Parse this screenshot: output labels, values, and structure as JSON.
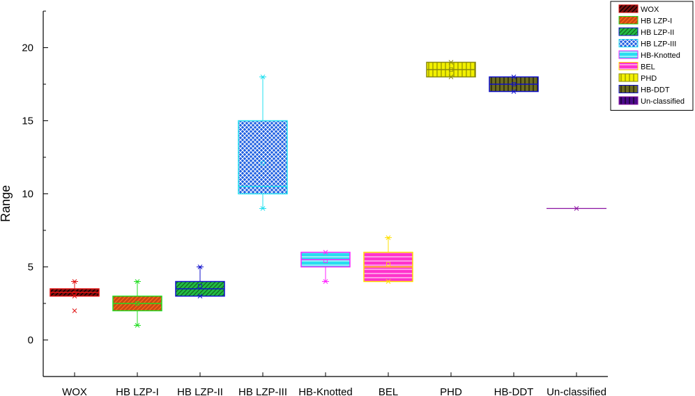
{
  "chart_data": {
    "type": "box",
    "title": "",
    "xlabel": "",
    "ylabel": "Range",
    "ylim": [
      -2.5,
      22.5
    ],
    "yticks": [
      "0",
      "5",
      "10",
      "15",
      "20"
    ],
    "categories": [
      "WOX",
      "HB LZP-I",
      "HB LZP-II",
      "HB LZP-III",
      "HB-Knotted",
      "BEL",
      "PHD",
      "HB-DDT",
      "Un-classified"
    ],
    "boxes": [
      {
        "name": "WOX",
        "min": 3,
        "q1": 3,
        "median": 3.25,
        "q3": 3.5,
        "max": 4,
        "mean": 3.2,
        "outliers": [
          2
        ],
        "color": "#e01010",
        "fill": "#7a1010",
        "pattern": "diag"
      },
      {
        "name": "HB LZP-I",
        "min": 1,
        "q1": 2,
        "median": 2.5,
        "q3": 3,
        "max": 4,
        "mean": 2.5,
        "outliers": [],
        "color": "#22dd22",
        "fill": "#c94a12",
        "pattern": "diag"
      },
      {
        "name": "HB LZP-II",
        "min": 3,
        "q1": 3,
        "median": 3.5,
        "q3": 4,
        "max": 5,
        "mean": 3.7,
        "outliers": [],
        "color": "#1010cc",
        "fill": "#22bb44",
        "pattern": "diag"
      },
      {
        "name": "HB LZP-III",
        "min": 9,
        "q1": 10,
        "median": 10.5,
        "q3": 15,
        "max": 18,
        "mean": 12.1,
        "outliers": [],
        "color": "#22e0f0",
        "fill": "#1e5fe0",
        "pattern": "cross"
      },
      {
        "name": "HB-Knotted",
        "min": 4,
        "q1": 5,
        "median": 5.5,
        "q3": 6,
        "max": 6,
        "mean": 5.4,
        "outliers": [],
        "color": "#ff22ff",
        "fill": "#28ddf0",
        "pattern": "horiz"
      },
      {
        "name": "BEL",
        "min": 4,
        "q1": 4,
        "median": 5,
        "q3": 6,
        "max": 7,
        "mean": 5.2,
        "outliers": [],
        "color": "#ffe000",
        "fill": "#ff33cc",
        "pattern": "horiz"
      },
      {
        "name": "PHD",
        "min": 18,
        "q1": 18,
        "median": 18.5,
        "q3": 19,
        "max": 19,
        "mean": 18.5,
        "outliers": [],
        "color": "#8a8a10",
        "fill": "#f2f000",
        "pattern": "vert"
      },
      {
        "name": "HB-DDT",
        "min": 17,
        "q1": 17,
        "median": 17.5,
        "q3": 18,
        "max": 18,
        "mean": 17.5,
        "outliers": [],
        "color": "#1010cc",
        "fill": "#6b6b20",
        "pattern": "vert"
      },
      {
        "name": "Un-classified",
        "min": 9,
        "q1": 9,
        "median": 9,
        "q3": 9,
        "max": 9,
        "mean": 9,
        "outliers": [],
        "color": "#8a10a0",
        "fill": "#4a0a8a",
        "pattern": "vert"
      }
    ],
    "legend": {
      "position": "top-right",
      "entries": [
        "WOX",
        "HB LZP-I",
        "HB LZP-II",
        "HB LZP-III",
        "HB-Knotted",
        "BEL",
        "PHD",
        "HB-DDT",
        "Un-classified"
      ]
    },
    "grid": false
  }
}
